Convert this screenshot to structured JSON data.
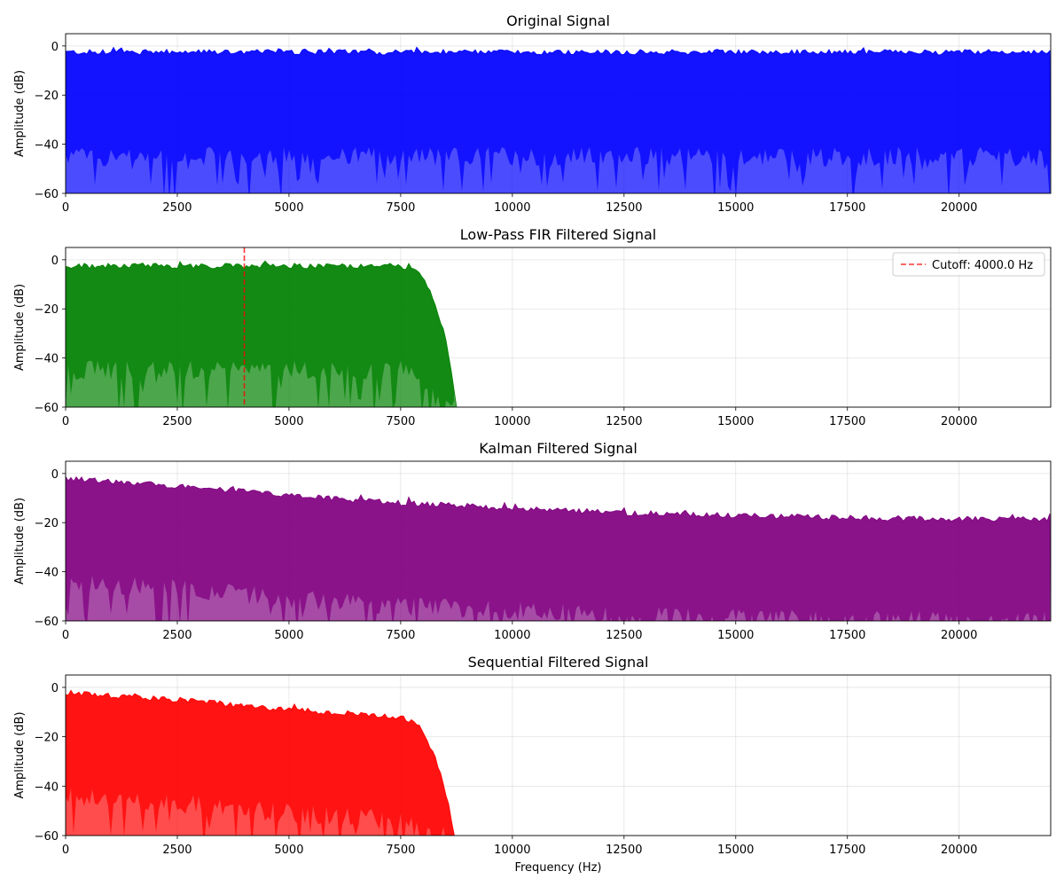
{
  "chart_data": [
    {
      "type": "area",
      "title": "Original Signal",
      "xlabel": "",
      "ylabel": "Amplitude (dB)",
      "xlim": [
        0,
        22050
      ],
      "ylim": [
        -60,
        5
      ],
      "xticks": [
        0,
        2500,
        5000,
        7500,
        10000,
        12500,
        15000,
        17500,
        20000
      ],
      "yticks": [
        0,
        -20,
        -40,
        -60
      ],
      "grid": true,
      "color": "#0000ff",
      "series": [
        {
          "x": [
            0,
            2000,
            4000,
            6000,
            8000,
            10000,
            12000,
            14000,
            16000,
            18000,
            20000,
            22050
          ],
          "envelope_top": [
            -2.5,
            -2.5,
            -2.5,
            -2.5,
            -2.5,
            -2.5,
            -2.5,
            -2.5,
            -2.5,
            -2.5,
            -2.5,
            -2.5
          ],
          "envelope_bottom": [
            -45,
            -45,
            -45,
            -45,
            -45,
            -45,
            -45,
            -45,
            -45,
            -45,
            -45,
            -45
          ]
        }
      ]
    },
    {
      "type": "area",
      "title": "Low-Pass FIR Filtered Signal",
      "xlabel": "",
      "ylabel": "Amplitude (dB)",
      "xlim": [
        0,
        22050
      ],
      "ylim": [
        -60,
        5
      ],
      "xticks": [
        0,
        2500,
        5000,
        7500,
        10000,
        12500,
        15000,
        17500,
        20000
      ],
      "yticks": [
        0,
        -20,
        -40,
        -60
      ],
      "grid": true,
      "color": "#008000",
      "cutoff": 4000,
      "cutoff_color": "#ff0000",
      "legend": {
        "label": "Cutoff: 4000.0 Hz",
        "position": "top-right"
      },
      "series": [
        {
          "x": [
            0,
            2000,
            4000,
            6000,
            7500,
            7800,
            8000,
            8200,
            8400,
            8600,
            8750
          ],
          "envelope_top": [
            -2.5,
            -2.5,
            -2.5,
            -2.5,
            -2.5,
            -4,
            -8,
            -15,
            -25,
            -40,
            -60
          ],
          "envelope_bottom": [
            -45,
            -45,
            -45,
            -45,
            -45,
            -48,
            -52,
            -56,
            -60,
            -60,
            -60
          ]
        }
      ]
    },
    {
      "type": "area",
      "title": "Kalman Filtered Signal",
      "xlabel": "",
      "ylabel": "Amplitude (dB)",
      "xlim": [
        0,
        22050
      ],
      "ylim": [
        -60,
        5
      ],
      "xticks": [
        0,
        2500,
        5000,
        7500,
        10000,
        12500,
        15000,
        17500,
        20000
      ],
      "yticks": [
        0,
        -20,
        -40,
        -60
      ],
      "grid": true,
      "color": "#800080",
      "series": [
        {
          "x": [
            0,
            2500,
            5000,
            7500,
            10000,
            12500,
            15000,
            17500,
            20000,
            22050
          ],
          "envelope_top": [
            -2,
            -5,
            -9,
            -12,
            -14,
            -16,
            -17,
            -18,
            -18.5,
            -18.5
          ],
          "envelope_bottom": [
            -44,
            -47,
            -51,
            -54,
            -56,
            -58,
            -59,
            -60,
            -60,
            -60
          ]
        }
      ]
    },
    {
      "type": "area",
      "title": "Sequential Filtered Signal",
      "xlabel": "Frequency (Hz)",
      "ylabel": "Amplitude (dB)",
      "xlim": [
        0,
        22050
      ],
      "ylim": [
        -60,
        5
      ],
      "xticks": [
        0,
        2500,
        5000,
        7500,
        10000,
        12500,
        15000,
        17500,
        20000
      ],
      "yticks": [
        0,
        -20,
        -40,
        -60
      ],
      "grid": true,
      "color": "#ff0000",
      "series": [
        {
          "x": [
            0,
            2500,
            5000,
            7500,
            7800,
            8000,
            8200,
            8400,
            8600,
            8700
          ],
          "envelope_top": [
            -2,
            -5,
            -9,
            -12,
            -14,
            -18,
            -25,
            -35,
            -50,
            -60
          ],
          "envelope_bottom": [
            -44,
            -47,
            -51,
            -54,
            -57,
            -60,
            -60,
            -60,
            -60,
            -60
          ]
        }
      ]
    }
  ]
}
